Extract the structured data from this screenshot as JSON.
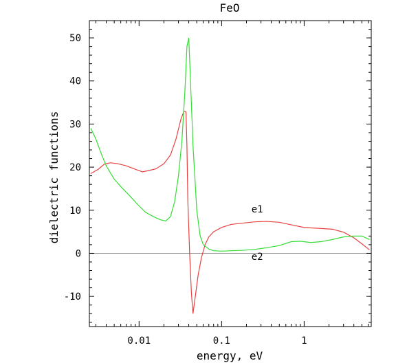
{
  "chart_data": {
    "type": "line",
    "title": "FeO",
    "xlabel": "energy, eV",
    "ylabel": "dielectric functions",
    "x_scale": "log",
    "xlim": [
      0.0025,
      6.5
    ],
    "ylim": [
      -17,
      54
    ],
    "x_ticks": [
      0.01,
      0.1,
      1
    ],
    "x_tick_labels": [
      "0.01",
      "0.1",
      "1"
    ],
    "y_ticks": [
      -10,
      0,
      10,
      20,
      30,
      40,
      50
    ],
    "y_tick_labels": [
      "-10",
      "0",
      "10",
      "20",
      "30",
      "40",
      "50"
    ],
    "zero_line": true,
    "grid": false,
    "colors": {
      "e1": "#e64040",
      "e2": "#33dd33",
      "zero": "#999999",
      "axis": "#000000"
    },
    "series": [
      {
        "name": "e1",
        "color": "#e64040",
        "x": [
          0.0026,
          0.0032,
          0.0038,
          0.0045,
          0.0055,
          0.007,
          0.009,
          0.011,
          0.013,
          0.016,
          0.02,
          0.024,
          0.028,
          0.032,
          0.035,
          0.037,
          0.038,
          0.039,
          0.041,
          0.043,
          0.045,
          0.048,
          0.052,
          0.057,
          0.063,
          0.07,
          0.08,
          0.1,
          0.13,
          0.18,
          0.25,
          0.35,
          0.5,
          0.7,
          1.0,
          1.5,
          2.2,
          3.0,
          4.0,
          5.0,
          6.2
        ],
        "values": [
          18.5,
          19.5,
          20.7,
          21.0,
          20.8,
          20.3,
          19.5,
          18.9,
          19.2,
          19.6,
          20.8,
          22.8,
          26.5,
          31.0,
          33.0,
          32.8,
          25.0,
          12.0,
          0.0,
          -9.0,
          -14.0,
          -10.0,
          -5.0,
          -1.0,
          2.0,
          3.8,
          5.0,
          6.0,
          6.7,
          7.0,
          7.3,
          7.4,
          7.2,
          6.6,
          6.0,
          5.8,
          5.6,
          4.9,
          3.6,
          2.2,
          0.8
        ]
      },
      {
        "name": "e2",
        "color": "#33dd33",
        "x": [
          0.0026,
          0.003,
          0.0035,
          0.004,
          0.005,
          0.006,
          0.008,
          0.01,
          0.012,
          0.015,
          0.018,
          0.021,
          0.024,
          0.027,
          0.03,
          0.033,
          0.036,
          0.038,
          0.04,
          0.042,
          0.045,
          0.05,
          0.055,
          0.06,
          0.07,
          0.08,
          0.1,
          0.13,
          0.18,
          0.25,
          0.35,
          0.5,
          0.7,
          0.9,
          1.2,
          1.6,
          2.2,
          3.0,
          4.0,
          5.0,
          6.2
        ],
        "values": [
          29.0,
          26.5,
          23.0,
          20.3,
          17.2,
          15.5,
          13.0,
          11.0,
          9.5,
          8.5,
          7.8,
          7.5,
          8.5,
          12.0,
          18.0,
          26.0,
          38.0,
          48.0,
          50.0,
          40.0,
          25.0,
          10.0,
          4.0,
          2.0,
          1.0,
          0.6,
          0.5,
          0.6,
          0.7,
          0.9,
          1.3,
          1.8,
          2.7,
          2.8,
          2.5,
          2.7,
          3.2,
          3.8,
          4.0,
          4.0,
          3.2
        ]
      }
    ],
    "annotations": [
      {
        "text": "e1",
        "x": 0.27,
        "y": 9.5
      },
      {
        "text": "e2",
        "x": 0.27,
        "y": -1.5
      }
    ]
  }
}
